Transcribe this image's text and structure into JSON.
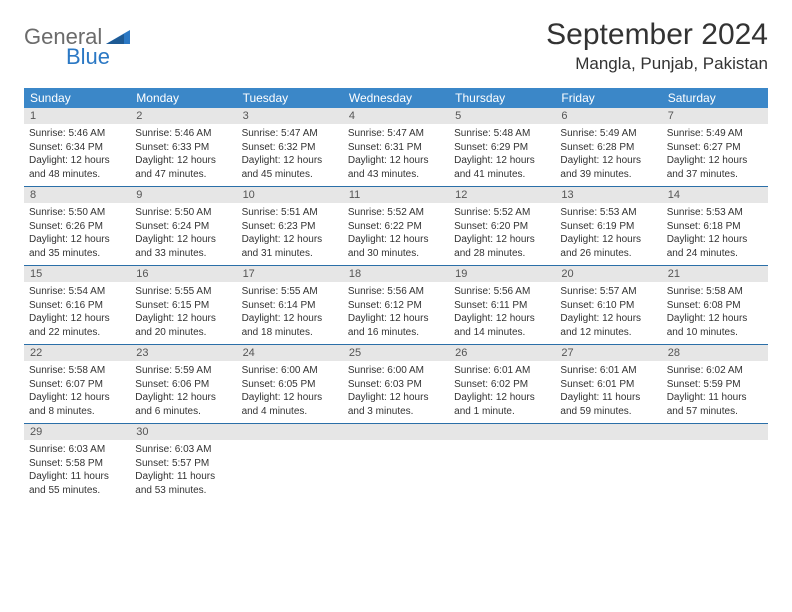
{
  "logo": {
    "text1": "General",
    "text2": "Blue"
  },
  "title": "September 2024",
  "location": "Mangla, Punjab, Pakistan",
  "title_fontsize": 30,
  "location_fontsize": 17,
  "colors": {
    "header_bg": "#3b87c8",
    "header_text": "#ffffff",
    "daynum_bg": "#e6e6e6",
    "daynum_text": "#555555",
    "body_text": "#333333",
    "row_border": "#2b6fa8",
    "logo_gray": "#6b6b6b",
    "logo_blue": "#2b78c4",
    "background": "#ffffff"
  },
  "dow": [
    "Sunday",
    "Monday",
    "Tuesday",
    "Wednesday",
    "Thursday",
    "Friday",
    "Saturday"
  ],
  "weeks": [
    [
      {
        "n": "1",
        "sr": "Sunrise: 5:46 AM",
        "ss": "Sunset: 6:34 PM",
        "d1": "Daylight: 12 hours",
        "d2": "and 48 minutes."
      },
      {
        "n": "2",
        "sr": "Sunrise: 5:46 AM",
        "ss": "Sunset: 6:33 PM",
        "d1": "Daylight: 12 hours",
        "d2": "and 47 minutes."
      },
      {
        "n": "3",
        "sr": "Sunrise: 5:47 AM",
        "ss": "Sunset: 6:32 PM",
        "d1": "Daylight: 12 hours",
        "d2": "and 45 minutes."
      },
      {
        "n": "4",
        "sr": "Sunrise: 5:47 AM",
        "ss": "Sunset: 6:31 PM",
        "d1": "Daylight: 12 hours",
        "d2": "and 43 minutes."
      },
      {
        "n": "5",
        "sr": "Sunrise: 5:48 AM",
        "ss": "Sunset: 6:29 PM",
        "d1": "Daylight: 12 hours",
        "d2": "and 41 minutes."
      },
      {
        "n": "6",
        "sr": "Sunrise: 5:49 AM",
        "ss": "Sunset: 6:28 PM",
        "d1": "Daylight: 12 hours",
        "d2": "and 39 minutes."
      },
      {
        "n": "7",
        "sr": "Sunrise: 5:49 AM",
        "ss": "Sunset: 6:27 PM",
        "d1": "Daylight: 12 hours",
        "d2": "and 37 minutes."
      }
    ],
    [
      {
        "n": "8",
        "sr": "Sunrise: 5:50 AM",
        "ss": "Sunset: 6:26 PM",
        "d1": "Daylight: 12 hours",
        "d2": "and 35 minutes."
      },
      {
        "n": "9",
        "sr": "Sunrise: 5:50 AM",
        "ss": "Sunset: 6:24 PM",
        "d1": "Daylight: 12 hours",
        "d2": "and 33 minutes."
      },
      {
        "n": "10",
        "sr": "Sunrise: 5:51 AM",
        "ss": "Sunset: 6:23 PM",
        "d1": "Daylight: 12 hours",
        "d2": "and 31 minutes."
      },
      {
        "n": "11",
        "sr": "Sunrise: 5:52 AM",
        "ss": "Sunset: 6:22 PM",
        "d1": "Daylight: 12 hours",
        "d2": "and 30 minutes."
      },
      {
        "n": "12",
        "sr": "Sunrise: 5:52 AM",
        "ss": "Sunset: 6:20 PM",
        "d1": "Daylight: 12 hours",
        "d2": "and 28 minutes."
      },
      {
        "n": "13",
        "sr": "Sunrise: 5:53 AM",
        "ss": "Sunset: 6:19 PM",
        "d1": "Daylight: 12 hours",
        "d2": "and 26 minutes."
      },
      {
        "n": "14",
        "sr": "Sunrise: 5:53 AM",
        "ss": "Sunset: 6:18 PM",
        "d1": "Daylight: 12 hours",
        "d2": "and 24 minutes."
      }
    ],
    [
      {
        "n": "15",
        "sr": "Sunrise: 5:54 AM",
        "ss": "Sunset: 6:16 PM",
        "d1": "Daylight: 12 hours",
        "d2": "and 22 minutes."
      },
      {
        "n": "16",
        "sr": "Sunrise: 5:55 AM",
        "ss": "Sunset: 6:15 PM",
        "d1": "Daylight: 12 hours",
        "d2": "and 20 minutes."
      },
      {
        "n": "17",
        "sr": "Sunrise: 5:55 AM",
        "ss": "Sunset: 6:14 PM",
        "d1": "Daylight: 12 hours",
        "d2": "and 18 minutes."
      },
      {
        "n": "18",
        "sr": "Sunrise: 5:56 AM",
        "ss": "Sunset: 6:12 PM",
        "d1": "Daylight: 12 hours",
        "d2": "and 16 minutes."
      },
      {
        "n": "19",
        "sr": "Sunrise: 5:56 AM",
        "ss": "Sunset: 6:11 PM",
        "d1": "Daylight: 12 hours",
        "d2": "and 14 minutes."
      },
      {
        "n": "20",
        "sr": "Sunrise: 5:57 AM",
        "ss": "Sunset: 6:10 PM",
        "d1": "Daylight: 12 hours",
        "d2": "and 12 minutes."
      },
      {
        "n": "21",
        "sr": "Sunrise: 5:58 AM",
        "ss": "Sunset: 6:08 PM",
        "d1": "Daylight: 12 hours",
        "d2": "and 10 minutes."
      }
    ],
    [
      {
        "n": "22",
        "sr": "Sunrise: 5:58 AM",
        "ss": "Sunset: 6:07 PM",
        "d1": "Daylight: 12 hours",
        "d2": "and 8 minutes."
      },
      {
        "n": "23",
        "sr": "Sunrise: 5:59 AM",
        "ss": "Sunset: 6:06 PM",
        "d1": "Daylight: 12 hours",
        "d2": "and 6 minutes."
      },
      {
        "n": "24",
        "sr": "Sunrise: 6:00 AM",
        "ss": "Sunset: 6:05 PM",
        "d1": "Daylight: 12 hours",
        "d2": "and 4 minutes."
      },
      {
        "n": "25",
        "sr": "Sunrise: 6:00 AM",
        "ss": "Sunset: 6:03 PM",
        "d1": "Daylight: 12 hours",
        "d2": "and 3 minutes."
      },
      {
        "n": "26",
        "sr": "Sunrise: 6:01 AM",
        "ss": "Sunset: 6:02 PM",
        "d1": "Daylight: 12 hours",
        "d2": "and 1 minute."
      },
      {
        "n": "27",
        "sr": "Sunrise: 6:01 AM",
        "ss": "Sunset: 6:01 PM",
        "d1": "Daylight: 11 hours",
        "d2": "and 59 minutes."
      },
      {
        "n": "28",
        "sr": "Sunrise: 6:02 AM",
        "ss": "Sunset: 5:59 PM",
        "d1": "Daylight: 11 hours",
        "d2": "and 57 minutes."
      }
    ],
    [
      {
        "n": "29",
        "sr": "Sunrise: 6:03 AM",
        "ss": "Sunset: 5:58 PM",
        "d1": "Daylight: 11 hours",
        "d2": "and 55 minutes."
      },
      {
        "n": "30",
        "sr": "Sunrise: 6:03 AM",
        "ss": "Sunset: 5:57 PM",
        "d1": "Daylight: 11 hours",
        "d2": "and 53 minutes."
      },
      null,
      null,
      null,
      null,
      null
    ]
  ]
}
